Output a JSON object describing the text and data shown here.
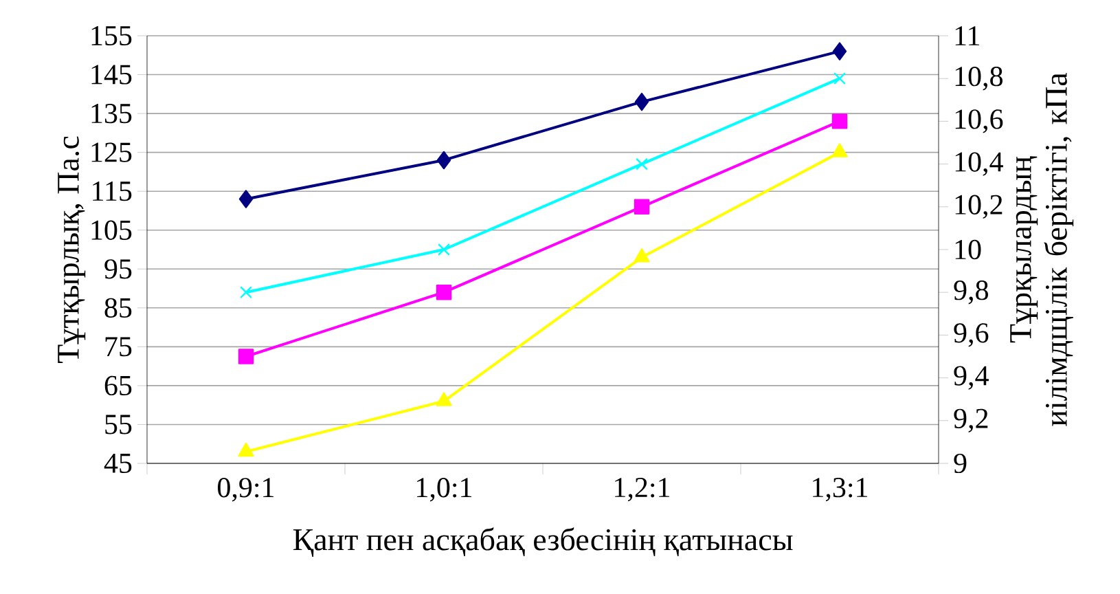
{
  "chart_data": {
    "type": "line",
    "xlabel": "Қант пен асқабақ езбесінің қатынасы",
    "ylabel": "Тұтқырлық, Па.с",
    "y2label": "Тұрқылардың иілімдщілік беріктігі, кПа",
    "categories": [
      "0,9:1",
      "1,0:1",
      "1,2:1",
      "1,3:1"
    ],
    "series": [
      {
        "color": "#000080",
        "marker": "diamond",
        "values": [
          113,
          123,
          138,
          151
        ]
      },
      {
        "color": "#00ffff",
        "marker": "cross",
        "values": [
          89,
          100,
          122,
          144
        ]
      },
      {
        "color": "#ff00ff",
        "marker": "square",
        "values": [
          72.5,
          89,
          111,
          133
        ]
      },
      {
        "color": "#ffff00",
        "marker": "triangle",
        "values": [
          48,
          61,
          98,
          125
        ]
      }
    ],
    "ylim": [
      45,
      155
    ],
    "yticks": [
      45,
      55,
      65,
      75,
      85,
      95,
      105,
      115,
      125,
      135,
      145,
      155
    ],
    "y2lim": [
      9,
      11
    ],
    "y2ticks": [
      9,
      {
        "value": 9.2,
        "label": "9,2"
      },
      {
        "value": 9.4,
        "label": "9,4"
      },
      {
        "value": 9.6,
        "label": "9,6"
      },
      {
        "value": 9.8,
        "label": "9,8"
      },
      10,
      {
        "value": 10.2,
        "label": "10,2"
      },
      {
        "value": 10.4,
        "label": "10,4"
      },
      {
        "value": 10.6,
        "label": "10,6"
      },
      {
        "value": 10.8,
        "label": "10,8"
      },
      11
    ],
    "grid": "y",
    "line_style": "solid"
  }
}
